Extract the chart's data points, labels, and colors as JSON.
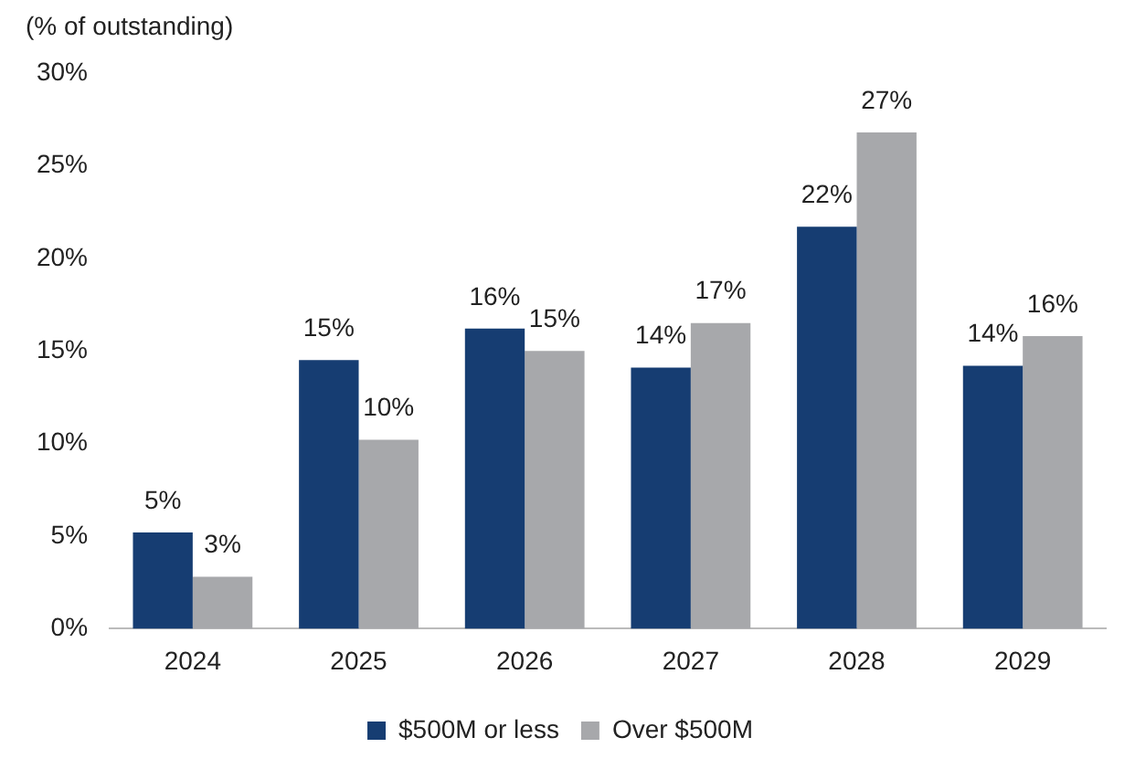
{
  "chart_data": {
    "type": "bar",
    "ylabel": "(% of outstanding)",
    "categories": [
      "2024",
      "2025",
      "2026",
      "2027",
      "2028",
      "2029"
    ],
    "series": [
      {
        "name": "$500M or less",
        "color": "#163d72",
        "values": [
          5.2,
          14.5,
          16.2,
          14.1,
          21.7,
          14.2
        ],
        "value_labels": [
          "5%",
          "15%",
          "16%",
          "14%",
          "22%",
          "14%"
        ]
      },
      {
        "name": "Over $500M",
        "color": "#a7a8ab",
        "values": [
          2.8,
          10.2,
          15.0,
          16.5,
          26.8,
          15.8
        ],
        "value_labels": [
          "3%",
          "10%",
          "15%",
          "17%",
          "27%",
          "16%"
        ]
      }
    ],
    "ylim": [
      0,
      30
    ],
    "yticks": [
      {
        "value": 0,
        "label": "0%"
      },
      {
        "value": 5,
        "label": "5%"
      },
      {
        "value": 10,
        "label": "10%"
      },
      {
        "value": 15,
        "label": "15%"
      },
      {
        "value": 20,
        "label": "20%"
      },
      {
        "value": 25,
        "label": "25%"
      },
      {
        "value": 30,
        "label": "30%"
      }
    ],
    "legend": "bottom",
    "grid": false
  }
}
